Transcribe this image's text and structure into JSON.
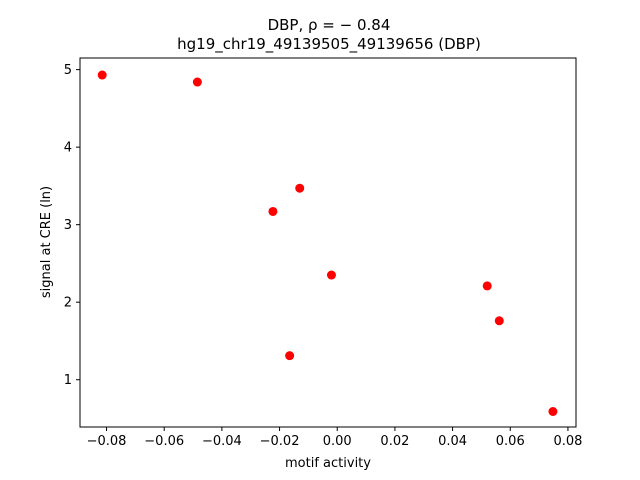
{
  "chart_data": {
    "type": "scatter",
    "title": "DBP, ρ = − 0.84",
    "subtitle": "hg19_chr19_49139505_49139656 (DBP)",
    "xlabel": "motif activity",
    "ylabel": "signal at CRE (ln)",
    "xlim": [
      -0.0892,
      0.0828
    ],
    "ylim": [
      0.39,
      5.15
    ],
    "xticks": [
      -0.08,
      -0.06,
      -0.04,
      -0.02,
      0.0,
      0.02,
      0.04,
      0.06,
      0.08
    ],
    "xtick_labels": [
      "−0.08",
      "−0.06",
      "−0.04",
      "−0.02",
      "0.00",
      "0.02",
      "0.04",
      "0.06",
      "0.08"
    ],
    "yticks": [
      1,
      2,
      3,
      4,
      5
    ],
    "ytick_labels": [
      "1",
      "2",
      "3",
      "4",
      "5"
    ],
    "grid": false,
    "marker_color": "#ff0000",
    "points": [
      {
        "x": -0.0815,
        "y": 4.93
      },
      {
        "x": -0.0485,
        "y": 4.84
      },
      {
        "x": -0.013,
        "y": 3.47
      },
      {
        "x": -0.0223,
        "y": 3.17
      },
      {
        "x": -0.002,
        "y": 2.35
      },
      {
        "x": -0.0165,
        "y": 1.31
      },
      {
        "x": 0.052,
        "y": 2.21
      },
      {
        "x": 0.0562,
        "y": 1.76
      },
      {
        "x": 0.0748,
        "y": 0.59
      }
    ]
  }
}
